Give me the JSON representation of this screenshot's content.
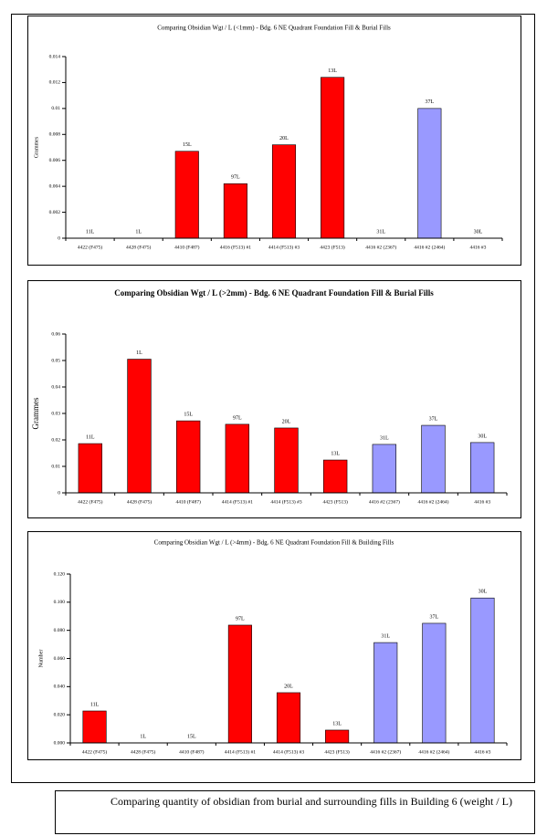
{
  "chart_data": [
    {
      "type": "bar",
      "title": "Comparing Obsidian Wgt / L (<1mm) - Bdg. 6 NE Quadrant Foundation Fill & Burial Fills",
      "title_bold": false,
      "y_label": "Grammes",
      "categories": [
        "4422 (F475)",
        "4428 (F475)",
        "4410 (F487)",
        "4416 (F513) #1",
        "4414 (F513) #3",
        "4423 (F513)",
        "4416 #2 (2367)",
        "4416 #2 (2464)",
        "4416 #3"
      ],
      "values": [
        0,
        0,
        0.0067,
        0.0042,
        0.0072,
        0.0124,
        0,
        0.01,
        0
      ],
      "bar_labels": [
        "11L",
        "1L",
        "15L",
        "97L",
        "20L",
        "13L",
        "31L",
        "37L",
        "30L"
      ],
      "colors": [
        "#ff0000",
        "#ff0000",
        "#ff0000",
        "#ff0000",
        "#ff0000",
        "#ff0000",
        "#9999ff",
        "#9999ff",
        "#9999ff"
      ],
      "ylim": [
        0,
        0.014
      ],
      "yticks": [
        0,
        0.002,
        0.004,
        0.006,
        0.008,
        0.01,
        0.012,
        0.014
      ]
    },
    {
      "type": "bar",
      "title": "Comparing Obsidian Wgt / L (>2mm) - Bdg. 6 NE Quadrant Foundation Fill & Burial Fills",
      "title_bold": true,
      "y_label": "Grammes",
      "categories": [
        "4422 (F475)",
        "4428 (F475)",
        "4410 (F487)",
        "4414 (F513) #1",
        "4414 (F513) #3",
        "4423 (F513)",
        "4416 #2 (2367)",
        "4416 #2 (2464)",
        "4416 #3"
      ],
      "values": [
        0.0186,
        0.0505,
        0.0272,
        0.0259,
        0.0245,
        0.0124,
        0.0183,
        0.0255,
        0.019
      ],
      "bar_labels": [
        "11L",
        "1L",
        "15L",
        "97L",
        "20L",
        "13L",
        "31L",
        "37L",
        "30L"
      ],
      "colors": [
        "#ff0000",
        "#ff0000",
        "#ff0000",
        "#ff0000",
        "#ff0000",
        "#ff0000",
        "#9999ff",
        "#9999ff",
        "#9999ff"
      ],
      "ylim": [
        0,
        0.06
      ],
      "yticks": [
        0,
        0.01,
        0.02,
        0.03,
        0.04,
        0.05,
        0.06
      ]
    },
    {
      "type": "bar",
      "title": "Comparing Obsidian Wgt / L (>4mm) - Bdg. 6 NE Quadrant Foundation Fill & Building Fills",
      "title_bold": false,
      "y_label": "Number",
      "categories": [
        "4422 (F475)",
        "4428 (F475)",
        "4410 (F487)",
        "4414 (F513) #1",
        "4414 (F513) #3",
        "4423 (F513)",
        "4416 #2 (2367)",
        "4416 #2 (2464)",
        "4416 #3"
      ],
      "values": [
        0.0227,
        0,
        0,
        0.0837,
        0.0357,
        0.0091,
        0.0713,
        0.085,
        0.103
      ],
      "bar_labels": [
        "11L",
        "1L",
        "15L",
        "97L",
        "20L",
        "13L",
        "31L",
        "37L",
        "30L"
      ],
      "colors": [
        "#ff0000",
        "#ff0000",
        "#ff0000",
        "#ff0000",
        "#ff0000",
        "#ff0000",
        "#9999ff",
        "#9999ff",
        "#9999ff"
      ],
      "ylim": [
        0,
        0.12
      ],
      "yticks": [
        {
          "value": 0,
          "label": "0.000"
        },
        {
          "value": 0.02,
          "label": "0.020"
        },
        {
          "value": 0.04,
          "label": "0.040"
        },
        {
          "value": 0.06,
          "label": "0.060"
        },
        {
          "value": 0.08,
          "label": "0.080"
        },
        {
          "value": 0.1,
          "label": "0.100"
        },
        {
          "value": 0.12,
          "label": "0.120"
        }
      ]
    }
  ],
  "caption": "Comparing quantity of obsidian from burial and surrounding fills in Building 6 (weight / L)"
}
